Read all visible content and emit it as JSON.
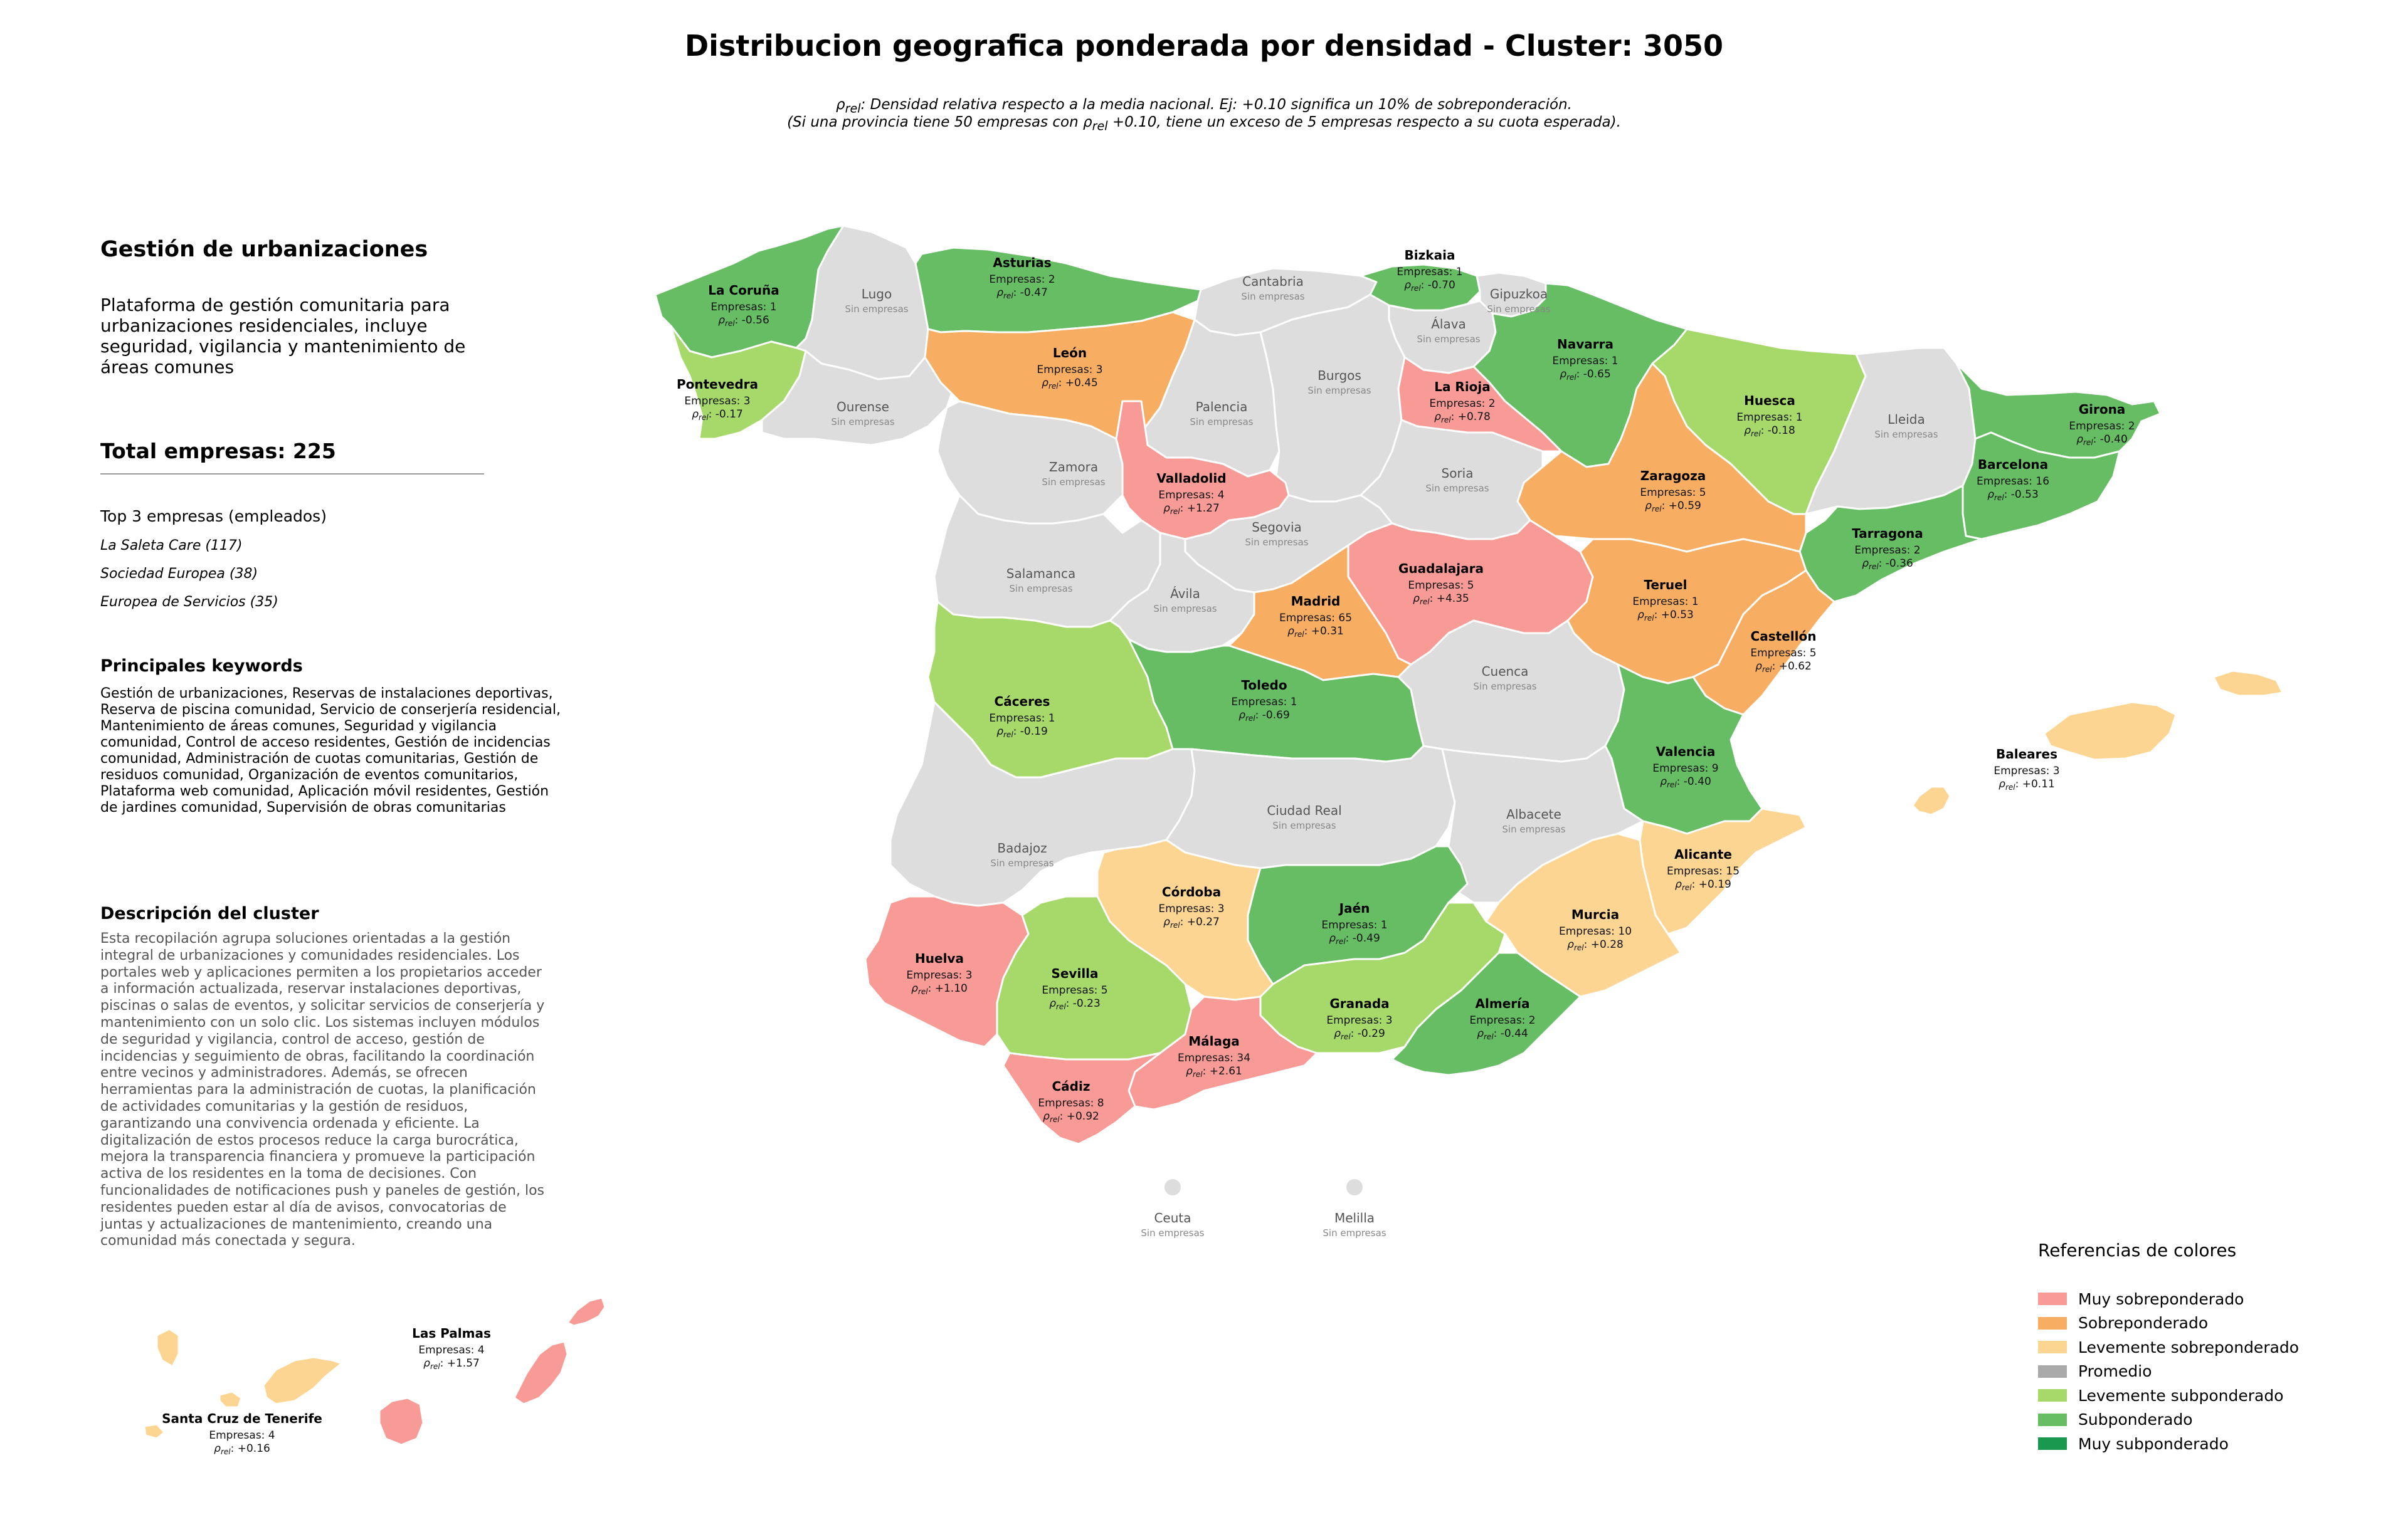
{
  "title": "Distribucion geografica ponderada por densidad - Cluster: 3050",
  "subtitle": {
    "line1_sym": "ρ",
    "line1_sub": "rel",
    "line1_rest": ": Densidad relativa respecto a la media nacional. Ej: +0.10 significa un 10% de sobreponderación.",
    "line2_a": "(Si una provincia tiene 50 empresas con ",
    "line2_sym": "ρ",
    "line2_sub": "rel",
    "line2_b": " +0.10, tiene un exceso de 5 empresas respecto a su cuota esperada)."
  },
  "cluster": {
    "name": "Gestión de urbanizaciones",
    "short_description": "Plataforma de gestión comunitaria para urbanizaciones residenciales, incluye seguridad, vigilancia y mantenimiento de áreas comunes",
    "total": "Total empresas: 225",
    "top3_heading": "Top 3 empresas (empleados)",
    "top3": [
      "La Saleta Care (117)",
      "Sociedad Europea (38)",
      "Europea de Servicios (35)"
    ],
    "keywords_heading": "Principales keywords",
    "keywords": "Gestión de urbanizaciones, Reservas de instalaciones deportivas, Reserva de piscina comunidad, Servicio de conserjería residencial, Mantenimiento de áreas comunes, Seguridad y vigilancia comunidad, Control de acceso residentes, Gestión de incidencias comunidad, Administración de cuotas comunitarias, Gestión de residuos comunidad, Organización de eventos comunitarios, Plataforma web comunidad, Aplicación móvil residentes, Gestión de jardines comunidad, Supervisión de obras comunitarias",
    "description_heading": "Descripción del cluster",
    "description": "Esta recopilación agrupa soluciones orientadas a la gestión integral de urbanizaciones y comunidades residenciales. Los portales web y aplicaciones permiten a los propietarios acceder a información actualizada, reservar instalaciones deportivas, piscinas o salas de eventos, y solicitar servicios de conserjería y mantenimiento con un solo clic. Los sistemas incluyen módulos de seguridad y vigilancia, control de acceso, gestión de incidencias y seguimiento de obras, facilitando la coordinación entre vecinos y administradores. Además, se ofrecen herramientas para la administración de cuotas, la planificación de actividades comunitarias y la gestión de residuos, garantizando una convivencia ordenada y eficiente. La digitalización de estos procesos reduce la carga burocrática, mejora la transparencia financiera y promueve la participación activa de los residentes en la toma de decisiones. Con funcionalidades de notificaciones push y paneles de gestión, los residentes pueden estar al día de avisos, convocatorias de juntas y actualizaciones de mantenimiento, creando una comunidad más conectada y segura."
  },
  "labels": {
    "companies_prefix": "Empresas: ",
    "rho_sym": "ρ",
    "rho_sub": "rel",
    "none": "Sin empresas"
  },
  "categories": {
    "muy_sobre": "#f89b96",
    "sobre": "#f8ae62",
    "lev_sobre": "#fdd593",
    "promedio": "#aaaaaa",
    "lev_sub": "#a6d96a",
    "sub": "#66bd63",
    "muy_sub": "#1a9850",
    "none": "#dddddd"
  },
  "legend": {
    "title": "Referencias de colores",
    "items": [
      {
        "label": "Muy sobreponderado",
        "color": "#f89b96"
      },
      {
        "label": "Sobreponderado",
        "color": "#f8ae62"
      },
      {
        "label": "Levemente sobreponderado",
        "color": "#fdd593"
      },
      {
        "label": "Promedio",
        "color": "#aaaaaa"
      },
      {
        "label": "Levemente subponderado",
        "color": "#a6d96a"
      },
      {
        "label": "Subponderado",
        "color": "#66bd63"
      },
      {
        "label": "Muy subponderado",
        "color": "#1a9850"
      }
    ]
  },
  "provinces": [
    {
      "name": "La Coruña",
      "empresas": 1,
      "rho": "-0.56",
      "cat": "sub"
    },
    {
      "name": "Lugo",
      "empresas": 0,
      "rho": null,
      "cat": "none"
    },
    {
      "name": "Asturias",
      "empresas": 2,
      "rho": "-0.47",
      "cat": "sub"
    },
    {
      "name": "Cantabria",
      "empresas": 0,
      "rho": null,
      "cat": "none"
    },
    {
      "name": "Bizkaia",
      "empresas": 1,
      "rho": "-0.70",
      "cat": "sub"
    },
    {
      "name": "Gipuzkoa",
      "empresas": 0,
      "rho": null,
      "cat": "none"
    },
    {
      "name": "Álava",
      "empresas": 0,
      "rho": null,
      "cat": "none"
    },
    {
      "name": "Navarra",
      "empresas": 1,
      "rho": "-0.65",
      "cat": "sub"
    },
    {
      "name": "Huesca",
      "empresas": 1,
      "rho": "-0.18",
      "cat": "lev_sub"
    },
    {
      "name": "Lleida",
      "empresas": 0,
      "rho": null,
      "cat": "none"
    },
    {
      "name": "Girona",
      "empresas": 2,
      "rho": "-0.40",
      "cat": "sub"
    },
    {
      "name": "Barcelona",
      "empresas": 16,
      "rho": "-0.53",
      "cat": "sub"
    },
    {
      "name": "Tarragona",
      "empresas": 2,
      "rho": "-0.36",
      "cat": "sub"
    },
    {
      "name": "Pontevedra",
      "empresas": 3,
      "rho": "-0.17",
      "cat": "lev_sub"
    },
    {
      "name": "Ourense",
      "empresas": 0,
      "rho": null,
      "cat": "none"
    },
    {
      "name": "León",
      "empresas": 3,
      "rho": "+0.45",
      "cat": "sobre"
    },
    {
      "name": "Palencia",
      "empresas": 0,
      "rho": null,
      "cat": "none"
    },
    {
      "name": "Burgos",
      "empresas": 0,
      "rho": null,
      "cat": "none"
    },
    {
      "name": "La Rioja",
      "empresas": 2,
      "rho": "+0.78",
      "cat": "muy_sobre"
    },
    {
      "name": "Zaragoza",
      "empresas": 5,
      "rho": "+0.59",
      "cat": "sobre"
    },
    {
      "name": "Zamora",
      "empresas": 0,
      "rho": null,
      "cat": "none"
    },
    {
      "name": "Valladolid",
      "empresas": 4,
      "rho": "+1.27",
      "cat": "muy_sobre"
    },
    {
      "name": "Soria",
      "empresas": 0,
      "rho": null,
      "cat": "none"
    },
    {
      "name": "Salamanca",
      "empresas": 0,
      "rho": null,
      "cat": "none"
    },
    {
      "name": "Segovia",
      "empresas": 0,
      "rho": null,
      "cat": "none"
    },
    {
      "name": "Ávila",
      "empresas": 0,
      "rho": null,
      "cat": "none"
    },
    {
      "name": "Guadalajara",
      "empresas": 5,
      "rho": "+4.35",
      "cat": "muy_sobre"
    },
    {
      "name": "Madrid",
      "empresas": 65,
      "rho": "+0.31",
      "cat": "sobre"
    },
    {
      "name": "Teruel",
      "empresas": 1,
      "rho": "+0.53",
      "cat": "sobre"
    },
    {
      "name": "Castellón",
      "empresas": 5,
      "rho": "+0.62",
      "cat": "sobre"
    },
    {
      "name": "Cáceres",
      "empresas": 1,
      "rho": "-0.19",
      "cat": "lev_sub"
    },
    {
      "name": "Toledo",
      "empresas": 1,
      "rho": "-0.69",
      "cat": "sub"
    },
    {
      "name": "Cuenca",
      "empresas": 0,
      "rho": null,
      "cat": "none"
    },
    {
      "name": "Valencia",
      "empresas": 9,
      "rho": "-0.40",
      "cat": "sub"
    },
    {
      "name": "Baleares",
      "empresas": 3,
      "rho": "+0.11",
      "cat": "lev_sobre"
    },
    {
      "name": "Badajoz",
      "empresas": 0,
      "rho": null,
      "cat": "none"
    },
    {
      "name": "Ciudad Real",
      "empresas": 0,
      "rho": null,
      "cat": "none"
    },
    {
      "name": "Albacete",
      "empresas": 0,
      "rho": null,
      "cat": "none"
    },
    {
      "name": "Alicante",
      "empresas": 15,
      "rho": "+0.19",
      "cat": "lev_sobre"
    },
    {
      "name": "Córdoba",
      "empresas": 3,
      "rho": "+0.27",
      "cat": "lev_sobre"
    },
    {
      "name": "Jaén",
      "empresas": 1,
      "rho": "-0.49",
      "cat": "sub"
    },
    {
      "name": "Murcia",
      "empresas": 10,
      "rho": "+0.28",
      "cat": "lev_sobre"
    },
    {
      "name": "Huelva",
      "empresas": 3,
      "rho": "+1.10",
      "cat": "muy_sobre"
    },
    {
      "name": "Sevilla",
      "empresas": 5,
      "rho": "-0.23",
      "cat": "lev_sub"
    },
    {
      "name": "Granada",
      "empresas": 3,
      "rho": "-0.29",
      "cat": "lev_sub"
    },
    {
      "name": "Almería",
      "empresas": 2,
      "rho": "-0.44",
      "cat": "sub"
    },
    {
      "name": "Málaga",
      "empresas": 34,
      "rho": "+2.61",
      "cat": "muy_sobre"
    },
    {
      "name": "Cádiz",
      "empresas": 8,
      "rho": "+0.92",
      "cat": "muy_sobre"
    },
    {
      "name": "Ceuta",
      "empresas": 0,
      "rho": null,
      "cat": "none"
    },
    {
      "name": "Melilla",
      "empresas": 0,
      "rho": null,
      "cat": "none"
    },
    {
      "name": "Las Palmas",
      "empresas": 4,
      "rho": "+1.57",
      "cat": "muy_sobre"
    },
    {
      "name": "Santa Cruz de Tenerife",
      "empresas": 4,
      "rho": "+0.16",
      "cat": "lev_sobre"
    }
  ]
}
